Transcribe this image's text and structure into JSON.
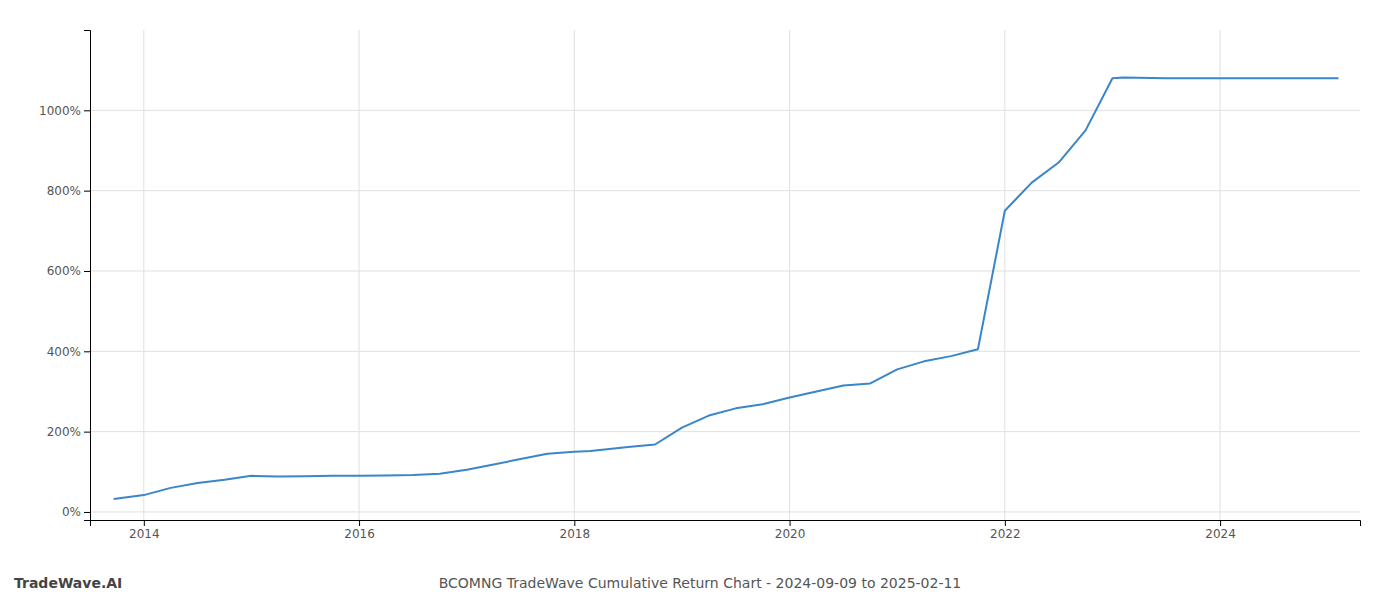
{
  "chart_data": {
    "type": "line",
    "title": "BCOMNG TradeWave Cumulative Return Chart - 2024-09-09 to 2025-02-11",
    "annotations": [
      {
        "text": "TradeWave.AI"
      }
    ],
    "x": [
      2013.72,
      2014.0,
      2014.25,
      2014.5,
      2014.75,
      2015.0,
      2015.25,
      2015.5,
      2015.75,
      2016.0,
      2016.25,
      2016.5,
      2016.75,
      2017.0,
      2017.25,
      2017.5,
      2017.75,
      2018.0,
      2018.15,
      2018.5,
      2018.75,
      2019.0,
      2019.25,
      2019.5,
      2019.75,
      2020.0,
      2020.25,
      2020.5,
      2020.75,
      2021.0,
      2021.25,
      2021.5,
      2021.75,
      2022.0,
      2022.25,
      2022.5,
      2022.75,
      2023.0,
      2023.1,
      2023.5,
      2024.0,
      2024.5,
      2025.1
    ],
    "values": [
      32,
      42,
      60,
      72,
      80,
      90,
      88,
      89,
      90,
      90,
      91,
      92,
      95,
      105,
      118,
      132,
      145,
      150,
      152,
      162,
      168,
      210,
      240,
      258,
      268,
      285,
      300,
      315,
      320,
      355,
      375,
      388,
      405,
      750,
      820,
      870,
      950,
      1080,
      1082,
      1080,
      1080,
      1080,
      1080
    ],
    "color": "#3a86c8",
    "xlim": [
      2013.5,
      2025.3
    ],
    "ylim": [
      -20,
      1200
    ],
    "xticks": [
      2014,
      2016,
      2018,
      2020,
      2022,
      2024
    ],
    "yticks": [
      {
        "value": 0,
        "label": "0%"
      },
      {
        "value": 200,
        "label": "200%"
      },
      {
        "value": 400,
        "label": "400%"
      },
      {
        "value": 600,
        "label": "600%"
      },
      {
        "value": 800,
        "label": "800%"
      },
      {
        "value": 1000,
        "label": "1000%"
      }
    ],
    "grid": true
  }
}
